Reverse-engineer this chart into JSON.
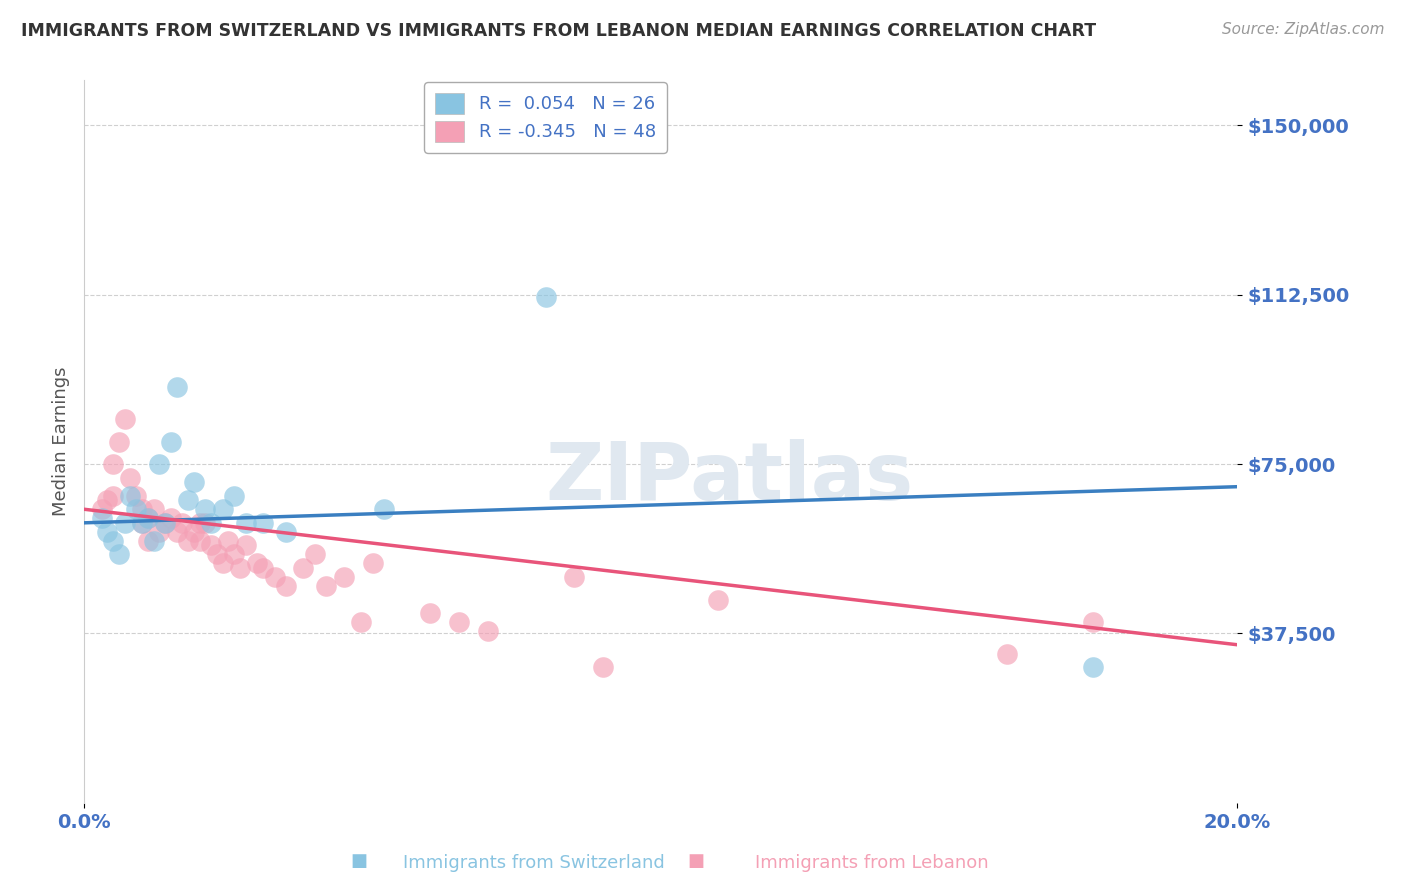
{
  "title": "IMMIGRANTS FROM SWITZERLAND VS IMMIGRANTS FROM LEBANON MEDIAN EARNINGS CORRELATION CHART",
  "source": "Source: ZipAtlas.com",
  "ylabel": "Median Earnings",
  "watermark": "ZIPatlas",
  "legend_swiss_r": "0.054",
  "legend_swiss_n": "26",
  "legend_leb_r": "-0.345",
  "legend_leb_n": "48",
  "xlim": [
    0.0,
    0.2
  ],
  "ylim": [
    0,
    160000
  ],
  "swiss_color": "#89c4e1",
  "leb_color": "#f4a0b5",
  "swiss_line_color": "#3a7fc1",
  "leb_line_color": "#e8547a",
  "title_color": "#333333",
  "tick_label_color": "#4472c4",
  "swiss_x": [
    0.003,
    0.004,
    0.005,
    0.006,
    0.007,
    0.008,
    0.009,
    0.01,
    0.011,
    0.012,
    0.013,
    0.014,
    0.015,
    0.016,
    0.018,
    0.019,
    0.021,
    0.022,
    0.024,
    0.026,
    0.028,
    0.031,
    0.035,
    0.052,
    0.08,
    0.175
  ],
  "swiss_y": [
    63000,
    60000,
    58000,
    55000,
    62000,
    68000,
    65000,
    62000,
    63000,
    58000,
    75000,
    62000,
    80000,
    92000,
    67000,
    71000,
    65000,
    62000,
    65000,
    68000,
    62000,
    62000,
    60000,
    65000,
    112000,
    30000
  ],
  "leb_x": [
    0.003,
    0.004,
    0.005,
    0.005,
    0.006,
    0.007,
    0.008,
    0.009,
    0.01,
    0.01,
    0.011,
    0.011,
    0.012,
    0.013,
    0.014,
    0.015,
    0.016,
    0.017,
    0.018,
    0.019,
    0.02,
    0.02,
    0.021,
    0.022,
    0.023,
    0.024,
    0.025,
    0.026,
    0.027,
    0.028,
    0.03,
    0.031,
    0.033,
    0.035,
    0.038,
    0.04,
    0.042,
    0.045,
    0.048,
    0.05,
    0.06,
    0.065,
    0.07,
    0.085,
    0.09,
    0.11,
    0.16,
    0.175
  ],
  "leb_y": [
    65000,
    67000,
    75000,
    68000,
    80000,
    85000,
    72000,
    68000,
    65000,
    62000,
    63000,
    58000,
    65000,
    60000,
    62000,
    63000,
    60000,
    62000,
    58000,
    60000,
    62000,
    58000,
    62000,
    57000,
    55000,
    53000,
    58000,
    55000,
    52000,
    57000,
    53000,
    52000,
    50000,
    48000,
    52000,
    55000,
    48000,
    50000,
    40000,
    53000,
    42000,
    40000,
    38000,
    50000,
    30000,
    45000,
    33000,
    40000
  ],
  "background_color": "#ffffff",
  "grid_color": "#d0d0d0"
}
